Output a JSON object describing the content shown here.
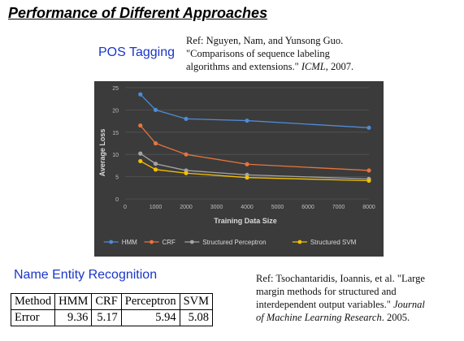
{
  "slide": {
    "title": "Performance of Different Approaches"
  },
  "pos": {
    "label": "POS Tagging",
    "ref_line1": "Ref: Nguyen, Nam, and Yunsong Guo.",
    "ref_line2": "\"Comparisons of sequence labeling",
    "ref_line3_a": "algorithms and extensions.\" ",
    "ref_line3_b": "ICML",
    "ref_line3_c": ", 2007."
  },
  "ner": {
    "label": "Name Entity Recognition",
    "ref_line1": "Ref: Tsochantaridis, Ioannis, et al. \"Large",
    "ref_line2": "margin methods for structured and",
    "ref_line3_a": "interdependent output variables.\" ",
    "ref_line3_b": "Journal",
    "ref_line4_a": "of Machine Learning Research",
    "ref_line4_b": ". 2005.",
    "table": {
      "headers": [
        "Method",
        "HMM",
        "CRF",
        "Perceptron",
        "SVM"
      ],
      "row": [
        "Error",
        "9.36",
        "5.17",
        "5.94",
        "5.08"
      ]
    }
  },
  "chart_data": {
    "type": "line",
    "title": "",
    "xlabel": "Training Data Size",
    "ylabel": "Average Loss",
    "xlim": [
      0,
      8000
    ],
    "ylim": [
      0,
      25
    ],
    "xticks": [
      0,
      1000,
      2000,
      3000,
      4000,
      5000,
      6000,
      7000,
      8000
    ],
    "yticks": [
      0,
      5,
      10,
      15,
      20,
      25
    ],
    "grid": true,
    "legend_position": "bottom",
    "x": [
      500,
      1000,
      2000,
      4000,
      8000
    ],
    "series": [
      {
        "name": "HMM",
        "color": "#4e8bd6",
        "values": [
          23.5,
          20.0,
          18.0,
          17.6,
          16.0
        ]
      },
      {
        "name": "CRF",
        "color": "#e8743b",
        "values": [
          16.5,
          12.5,
          10.0,
          7.8,
          6.4
        ]
      },
      {
        "name": "Structured Perceptron",
        "color": "#a5a5a5",
        "values": [
          10.2,
          7.9,
          6.4,
          5.4,
          4.5
        ]
      },
      {
        "name": "Structured SVM",
        "color": "#f5c000",
        "values": [
          8.5,
          6.6,
          5.8,
          4.8,
          4.1
        ]
      }
    ]
  }
}
